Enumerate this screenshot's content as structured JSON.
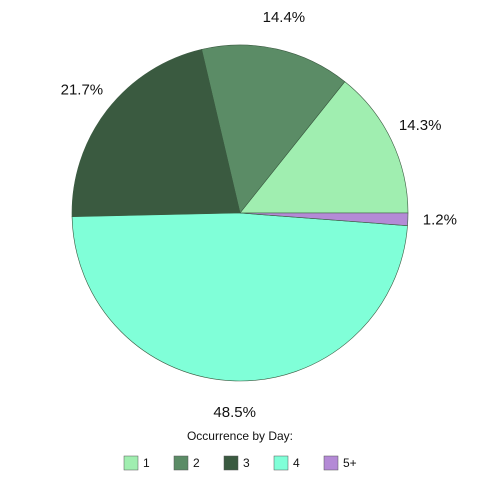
{
  "chart_data": {
    "type": "pie",
    "categories": [
      "1",
      "2",
      "3",
      "4",
      "5+"
    ],
    "values": [
      14.3,
      14.4,
      21.7,
      48.5,
      1.2
    ],
    "value_labels": [
      "14.3%",
      "14.4%",
      "21.7%",
      "48.5%",
      "1.2%"
    ],
    "colors": [
      "#a0eeb0",
      "#5b8c66",
      "#3a5a40",
      "#80ffd8",
      "#b48ad6"
    ],
    "legend_title": "Occurrence by Day:",
    "legend_position": "bottom"
  }
}
